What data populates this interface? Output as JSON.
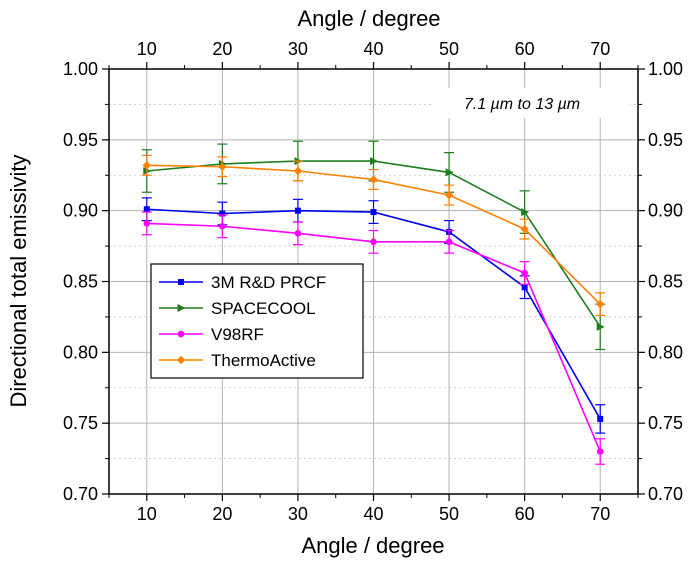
{
  "chart_data": {
    "type": "line",
    "xlabel": "Angle / degree",
    "top_xlabel": "Angle / degree",
    "ylabel": "Directional total emissivity",
    "annotation": "7.1 µm to 13 µm",
    "x": [
      10,
      20,
      30,
      40,
      50,
      60,
      70
    ],
    "xlim": [
      5,
      75
    ],
    "ylim": [
      0.7,
      1.0
    ],
    "xticks": [
      "10",
      "20",
      "30",
      "40",
      "50",
      "60",
      "70"
    ],
    "yticks": [
      "0.70",
      "0.75",
      "0.80",
      "0.85",
      "0.90",
      "0.95",
      "1.00"
    ],
    "grid": true,
    "legend_position": "lower-left",
    "series": [
      {
        "name": "3M R&D PRCF",
        "color": "#0000ee",
        "marker": "square",
        "values": [
          0.901,
          0.898,
          0.9,
          0.899,
          0.885,
          0.846,
          0.753
        ],
        "errors": [
          0.008,
          0.008,
          0.008,
          0.008,
          0.008,
          0.008,
          0.01
        ]
      },
      {
        "name": "SPACECOOL",
        "color": "#1e7d1e",
        "marker": "triangle-right",
        "values": [
          0.928,
          0.933,
          0.935,
          0.935,
          0.927,
          0.899,
          0.818
        ],
        "errors": [
          0.015,
          0.014,
          0.014,
          0.014,
          0.014,
          0.015,
          0.016
        ]
      },
      {
        "name": "V98RF",
        "color": "#ff00ff",
        "marker": "circle",
        "values": [
          0.891,
          0.889,
          0.884,
          0.878,
          0.878,
          0.856,
          0.73
        ],
        "errors": [
          0.008,
          0.008,
          0.008,
          0.008,
          0.008,
          0.008,
          0.009
        ]
      },
      {
        "name": "ThermoActive",
        "color": "#ff8000",
        "marker": "diamond",
        "values": [
          0.932,
          0.931,
          0.928,
          0.922,
          0.911,
          0.887,
          0.834
        ],
        "errors": [
          0.007,
          0.007,
          0.007,
          0.007,
          0.007,
          0.007,
          0.008
        ]
      }
    ]
  }
}
